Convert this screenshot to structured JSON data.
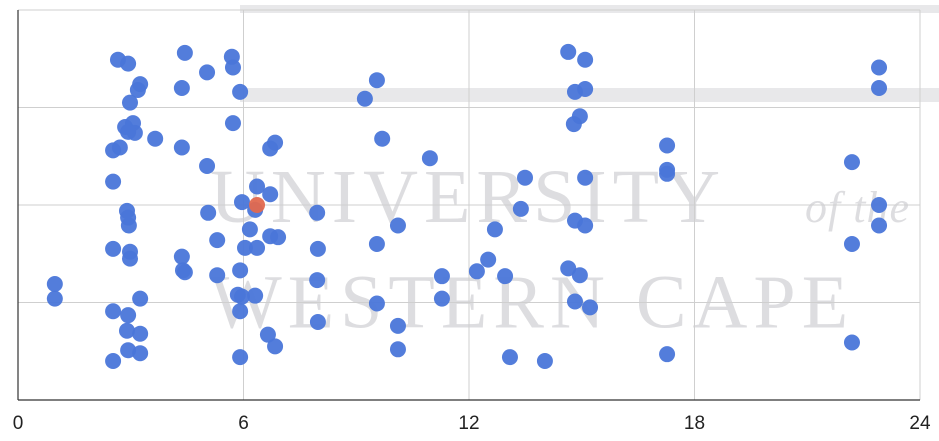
{
  "chart_data": {
    "type": "scatter",
    "watermark": {
      "line1": "UNIVERSITY",
      "line1_tail": "of the",
      "line2": "WESTERN CAPE"
    },
    "xlim": [
      0,
      24
    ],
    "xticks": [
      0,
      6,
      12,
      18,
      24
    ],
    "ylim": [
      0,
      4
    ],
    "yticks": [
      0,
      1,
      2,
      3,
      4
    ],
    "ytick_labels": false,
    "grid": true,
    "series": [
      {
        "color": "#4a76d9",
        "x": [
          0.98,
          0.98,
          2.66,
          2.93,
          3.25,
          3.19,
          2.98,
          2.85,
          3.06,
          3.11,
          2.93,
          3.65,
          2.71,
          2.53,
          2.53,
          2.9,
          2.93,
          2.95,
          2.53,
          2.98,
          2.98,
          3.25,
          2.53,
          2.93,
          2.9,
          3.25,
          2.93,
          3.25,
          2.53,
          4.44,
          4.36,
          5.03,
          4.36,
          5.03,
          5.06,
          4.36,
          4.39,
          4.44,
          5.3,
          5.3,
          5.69,
          5.72,
          5.91,
          5.72,
          6.71,
          6.84,
          6.36,
          6.71,
          5.96,
          6.31,
          6.17,
          6.04,
          6.36,
          6.71,
          6.92,
          5.91,
          5.85,
          5.96,
          6.31,
          5.91,
          6.65,
          6.84,
          5.91,
          9.55,
          9.23,
          9.69,
          7.96,
          7.98,
          7.96,
          7.98,
          9.55,
          10.11,
          9.55,
          10.11,
          10.11,
          10.96,
          11.28,
          11.28,
          12.21,
          12.51,
          12.96,
          12.69,
          13.38,
          13.49,
          13.09,
          14.02,
          14.64,
          15.09,
          14.82,
          15.09,
          14.95,
          14.79,
          15.09,
          14.64,
          14.95,
          14.82,
          15.09,
          14.82,
          15.22,
          17.27,
          17.27,
          17.27,
          17.27,
          22.91,
          22.91,
          22.19,
          22.91,
          22.91,
          22.19,
          22.19
        ],
        "values": [
          1.19,
          1.04,
          3.49,
          3.45,
          3.24,
          3.18,
          3.05,
          2.8,
          2.84,
          2.74,
          2.75,
          2.68,
          2.59,
          2.56,
          2.24,
          1.94,
          1.87,
          1.79,
          1.55,
          1.52,
          1.45,
          1.04,
          0.91,
          0.87,
          0.71,
          0.68,
          0.51,
          0.48,
          0.4,
          3.56,
          3.2,
          3.36,
          2.59,
          2.4,
          1.92,
          1.47,
          1.33,
          1.31,
          1.64,
          1.28,
          3.52,
          3.41,
          3.16,
          2.84,
          2.58,
          2.64,
          2.19,
          2.11,
          2.03,
          1.95,
          1.75,
          1.56,
          1.56,
          1.68,
          1.67,
          1.33,
          1.08,
          1.06,
          1.07,
          0.91,
          0.67,
          0.55,
          0.44,
          3.28,
          3.09,
          2.68,
          1.92,
          1.55,
          1.23,
          0.8,
          1.6,
          1.79,
          0.99,
          0.76,
          0.52,
          2.48,
          1.27,
          1.04,
          1.32,
          1.44,
          1.27,
          1.75,
          1.96,
          2.28,
          0.44,
          0.4,
          3.57,
          3.49,
          3.16,
          3.19,
          2.91,
          2.83,
          2.28,
          1.35,
          1.28,
          1.84,
          1.79,
          1.01,
          0.95,
          2.61,
          2.36,
          2.32,
          0.47,
          3.41,
          3.2,
          2.44,
          2.0,
          1.79,
          1.6,
          0.59
        ]
      },
      {
        "color": "#e2694f",
        "x": [
          6.36
        ],
        "values": [
          2.0
        ]
      }
    ]
  }
}
